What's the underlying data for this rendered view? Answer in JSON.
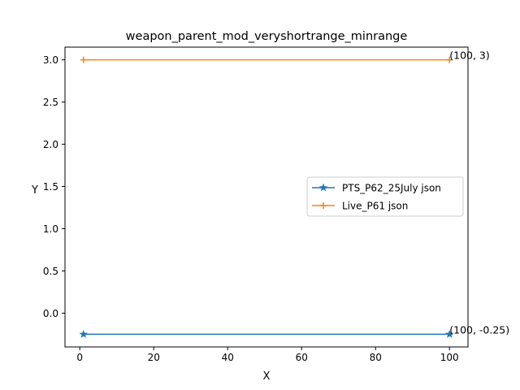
{
  "chart_data": {
    "type": "line",
    "title": "weapon_parent_mod_veryshortrange_minrange",
    "xlabel": "X",
    "ylabel": "Y",
    "xlim": [
      -4,
      105
    ],
    "ylim": [
      -0.4,
      3.15
    ],
    "x_ticks": [
      0,
      20,
      40,
      60,
      80,
      100
    ],
    "x_tick_labels": [
      "0",
      "20",
      "40",
      "60",
      "80",
      "100"
    ],
    "y_ticks": [
      0.0,
      0.5,
      1.0,
      1.5,
      2.0,
      2.5,
      3.0
    ],
    "y_tick_labels": [
      "0.0",
      "0.5",
      "1.0",
      "1.5",
      "2.0",
      "2.5",
      "3.0"
    ],
    "grid": false,
    "legend_position": "center-right",
    "series": [
      {
        "name": "PTS_P62_25July json",
        "color": "#1f77b4",
        "marker": "star",
        "x": [
          1,
          100
        ],
        "y": [
          -0.25,
          -0.25
        ]
      },
      {
        "name": "Live_P61 json",
        "color": "#ff7f0e",
        "marker": "plus",
        "x": [
          1,
          100
        ],
        "y": [
          3,
          3
        ]
      }
    ],
    "annotations": [
      {
        "text": "(100, 3)",
        "x": 100,
        "y": 3
      },
      {
        "text": "(100, -0.25)",
        "x": 100,
        "y": -0.25
      }
    ]
  }
}
